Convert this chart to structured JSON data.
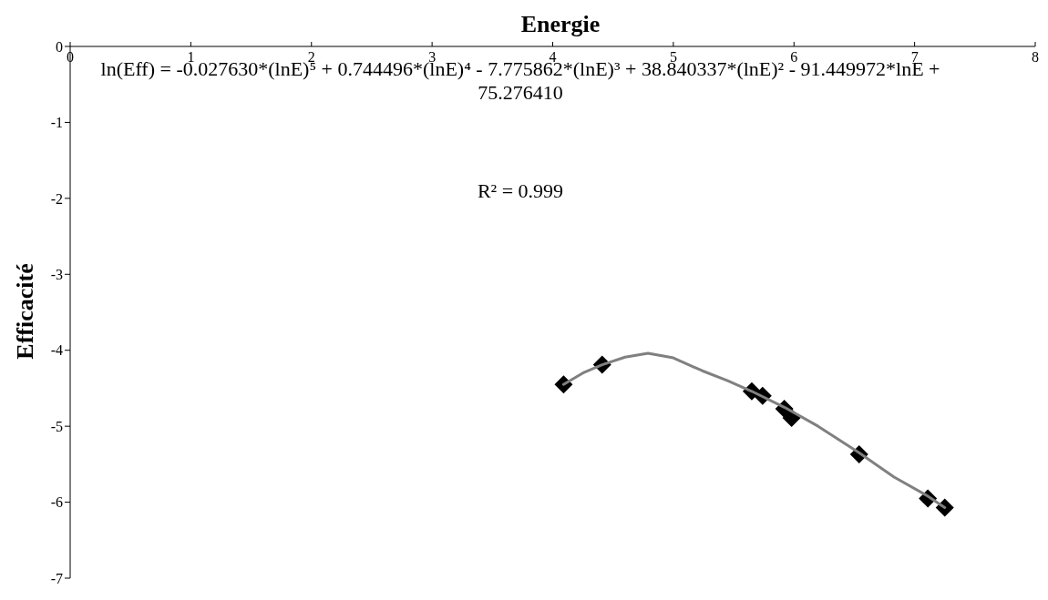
{
  "chart_data": {
    "type": "scatter",
    "title": "Energie",
    "ylabel": "Efficacité",
    "xlim": [
      0,
      8
    ],
    "xticks": [
      0,
      1,
      2,
      3,
      4,
      5,
      6,
      7,
      8
    ],
    "ylim": [
      -7,
      0
    ],
    "yticks": [
      0,
      -1,
      -2,
      -3,
      -4,
      -5,
      -6,
      -7
    ],
    "grid": false,
    "legend": false,
    "marker": "diamond",
    "annotations": [
      "ln(Eff) = -0.027630*(lnE)⁵ + 0.744496*(lnE)⁴ - 7.775862*(lnE)³ + 38.840337*(lnE)² - 91.449972*lnE + 75.276410",
      "R² = 0.999"
    ],
    "series": [
      {
        "type": "scatter",
        "color": "#000000",
        "x": [
          4.09,
          4.41,
          5.65,
          5.74,
          5.92,
          5.98,
          6.54,
          7.11,
          7.25
        ],
        "values": [
          -4.45,
          -4.19,
          -4.54,
          -4.6,
          -4.77,
          -4.89,
          -5.37,
          -5.95,
          -6.07
        ]
      },
      {
        "type": "line",
        "color": "#808080",
        "marker": "none",
        "x": [
          4.09,
          4.25,
          4.41,
          4.6,
          4.79,
          5.0,
          5.24,
          5.45,
          5.65,
          5.92,
          6.2,
          6.54,
          6.83,
          7.11,
          7.25
        ],
        "values": [
          -4.45,
          -4.3,
          -4.19,
          -4.09,
          -4.04,
          -4.1,
          -4.27,
          -4.4,
          -4.54,
          -4.75,
          -5.0,
          -5.35,
          -5.67,
          -5.92,
          -6.07
        ]
      }
    ]
  }
}
